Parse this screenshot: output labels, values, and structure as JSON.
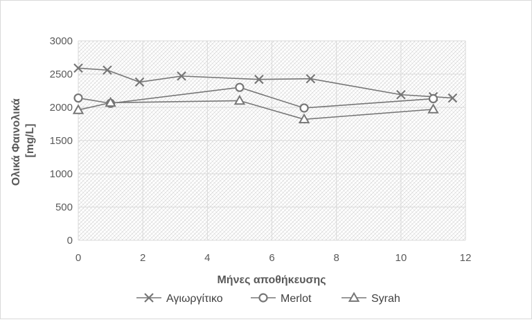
{
  "chart_data": {
    "type": "line",
    "title": "",
    "xlabel": "Μήνες αποθήκευσης",
    "ylabel": [
      "Ολικά Φαινολικά",
      "[mg/L]"
    ],
    "xlim": [
      0,
      12
    ],
    "ylim": [
      0,
      3000
    ],
    "x_ticks": [
      0,
      2,
      4,
      6,
      8,
      10,
      12
    ],
    "y_ticks": [
      0,
      500,
      1000,
      1500,
      2000,
      2500,
      3000
    ],
    "grid": true,
    "legend_position": "bottom",
    "series": [
      {
        "name": "Αγιωργίτικο",
        "marker": "x",
        "points": [
          [
            0,
            2590
          ],
          [
            0.9,
            2560
          ],
          [
            1.9,
            2380
          ],
          [
            3.2,
            2470
          ],
          [
            5.6,
            2420
          ],
          [
            7.2,
            2430
          ],
          [
            10,
            2190
          ],
          [
            11,
            2160
          ],
          [
            11.6,
            2140
          ]
        ]
      },
      {
        "name": "Merlot",
        "marker": "circle",
        "points": [
          [
            0,
            2140
          ],
          [
            1,
            2060
          ],
          [
            5,
            2300
          ],
          [
            7,
            1990
          ],
          [
            11,
            2130
          ]
        ]
      },
      {
        "name": "Syrah",
        "marker": "triangle",
        "points": [
          [
            0,
            1960
          ],
          [
            1,
            2070
          ],
          [
            5,
            2100
          ],
          [
            7,
            1820
          ],
          [
            11,
            1970
          ]
        ]
      }
    ],
    "colors": {
      "series": "#767676",
      "grid": "#d9d9d9",
      "hatch": "#bfbfbf",
      "text": "#595959"
    }
  }
}
